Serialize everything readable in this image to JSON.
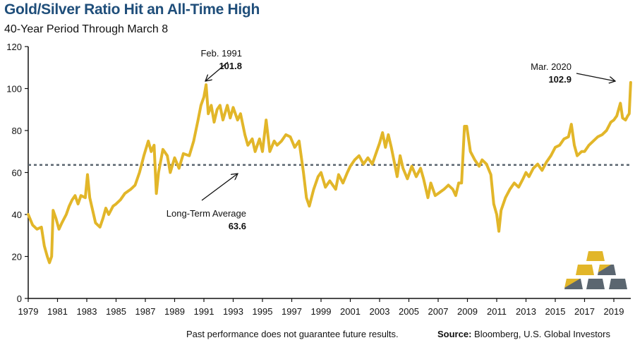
{
  "header": {
    "title": "Gold/Silver Ratio Hit an All-Time High",
    "subtitle": "40-Year Period Through March 8"
  },
  "footer": {
    "disclaimer": "Past performance does not guarantee future results.",
    "source_label": "Source:",
    "source_text": "Bloomberg, U.S. Global Investors"
  },
  "logo": {
    "icon": "gold-bars-icon",
    "colors": {
      "gold": "#e2b629",
      "slate": "#5b6670"
    }
  },
  "chart_data": {
    "type": "line",
    "title": "Gold/Silver Ratio Hit an All-Time High",
    "subtitle": "40-Year Period Through March 8",
    "xlabel": "",
    "ylabel": "",
    "xlim": [
      1979,
      2020.2
    ],
    "ylim": [
      0,
      120
    ],
    "grid": false,
    "legend": "none",
    "x_ticks": [
      "1979",
      "1981",
      "1983",
      "1985",
      "1987",
      "1989",
      "1991",
      "1993",
      "1995",
      "1997",
      "1999",
      "2001",
      "2003",
      "2005",
      "2007",
      "2009",
      "2011",
      "2013",
      "2015",
      "2017",
      "2019"
    ],
    "y_ticks": [
      0,
      20,
      40,
      60,
      80,
      100,
      120
    ],
    "colors": {
      "line": "#e2b629",
      "average": "#5b6670",
      "axis": "#111111"
    },
    "series": [
      {
        "name": "Gold/Silver Ratio",
        "x": [
          1979.0,
          1979.3,
          1979.6,
          1979.9,
          1980.1,
          1980.3,
          1980.45,
          1980.6,
          1980.7,
          1980.9,
          1981.1,
          1981.3,
          1981.6,
          1981.8,
          1982.0,
          1982.2,
          1982.4,
          1982.6,
          1982.9,
          1983.05,
          1983.2,
          1983.4,
          1983.6,
          1983.9,
          1984.1,
          1984.3,
          1984.5,
          1984.8,
          1985.0,
          1985.3,
          1985.6,
          1986.0,
          1986.3,
          1986.6,
          1986.9,
          1987.2,
          1987.4,
          1987.6,
          1987.75,
          1987.9,
          1988.2,
          1988.5,
          1988.7,
          1989.0,
          1989.3,
          1989.6,
          1990.0,
          1990.3,
          1990.6,
          1990.8,
          1991.0,
          1991.15,
          1991.3,
          1991.5,
          1991.7,
          1991.9,
          1992.1,
          1992.3,
          1992.6,
          1992.8,
          1993.0,
          1993.3,
          1993.5,
          1993.8,
          1994.0,
          1994.3,
          1994.5,
          1994.8,
          1995.0,
          1995.25,
          1995.5,
          1995.8,
          1996.0,
          1996.3,
          1996.6,
          1996.9,
          1997.2,
          1997.5,
          1997.8,
          1998.0,
          1998.2,
          1998.5,
          1998.8,
          1999.0,
          1999.3,
          1999.6,
          2000.0,
          2000.2,
          2000.5,
          2000.8,
          2001.0,
          2001.3,
          2001.6,
          2001.9,
          2002.2,
          2002.5,
          2002.8,
          2003.0,
          2003.2,
          2003.4,
          2003.6,
          2003.8,
          2004.0,
          2004.2,
          2004.4,
          2004.6,
          2004.9,
          2005.2,
          2005.5,
          2005.8,
          2006.0,
          2006.3,
          2006.5,
          2006.8,
          2007.0,
          2007.4,
          2007.7,
          2008.0,
          2008.2,
          2008.4,
          2008.6,
          2008.8,
          2008.95,
          2009.2,
          2009.5,
          2009.8,
          2010.0,
          2010.3,
          2010.6,
          2010.8,
          2011.0,
          2011.15,
          2011.3,
          2011.6,
          2011.9,
          2012.2,
          2012.5,
          2012.8,
          2013.0,
          2013.2,
          2013.5,
          2013.8,
          2014.1,
          2014.4,
          2014.7,
          2015.0,
          2015.3,
          2015.6,
          2015.9,
          2016.1,
          2016.3,
          2016.5,
          2016.8,
          2017.0,
          2017.3,
          2017.6,
          2017.9,
          2018.2,
          2018.5,
          2018.8,
          2019.0,
          2019.2,
          2019.45,
          2019.6,
          2019.8,
          2019.95,
          2020.05,
          2020.15
        ],
        "values": [
          40,
          35,
          33,
          34,
          25,
          20,
          17,
          20,
          42,
          38,
          33,
          36,
          40,
          44,
          47,
          49,
          45,
          49,
          48,
          59,
          48,
          42,
          36,
          34,
          38,
          43,
          40,
          44,
          45,
          47,
          50,
          52,
          54,
          60,
          68,
          75,
          70,
          73,
          50,
          60,
          71,
          68,
          60,
          67,
          62,
          69,
          68,
          75,
          85,
          92,
          96,
          101.8,
          88,
          92,
          84,
          90,
          92,
          85,
          92,
          86,
          91,
          85,
          88,
          78,
          73,
          76,
          70,
          76,
          70,
          85,
          70,
          75,
          73,
          75,
          78,
          77,
          72,
          75,
          60,
          48,
          44,
          52,
          58,
          60,
          53,
          56,
          52,
          59,
          55,
          60,
          63,
          66,
          68,
          64,
          67,
          64,
          70,
          74,
          79,
          72,
          78,
          72,
          65,
          58,
          68,
          62,
          57,
          63,
          58,
          62,
          57,
          48,
          55,
          49,
          50,
          52,
          54,
          52,
          49,
          55,
          55,
          82,
          82,
          70,
          66,
          63,
          66,
          64,
          59,
          45,
          40,
          32,
          42,
          48,
          52,
          55,
          53,
          57,
          60,
          58,
          62,
          64,
          61,
          65,
          68,
          72,
          73,
          76,
          77,
          83,
          73,
          68,
          70,
          70,
          73,
          75,
          77,
          78,
          80,
          84,
          85,
          87,
          93,
          86,
          85,
          87,
          88,
          102.9
        ]
      }
    ],
    "reference_lines": [
      {
        "name": "Long-Term Average",
        "value": 63.6,
        "style": "dotted"
      }
    ],
    "annotations": [
      {
        "label": "Feb. 1991",
        "value_label": "101.8",
        "x": 1991.15,
        "y": 101.8
      },
      {
        "label": "Mar. 2020",
        "value_label": "102.9",
        "x": 2020.15,
        "y": 102.9
      },
      {
        "label": "Long-Term Average",
        "value_label": "63.6",
        "x": 1993.5,
        "y": 63.6
      }
    ]
  }
}
